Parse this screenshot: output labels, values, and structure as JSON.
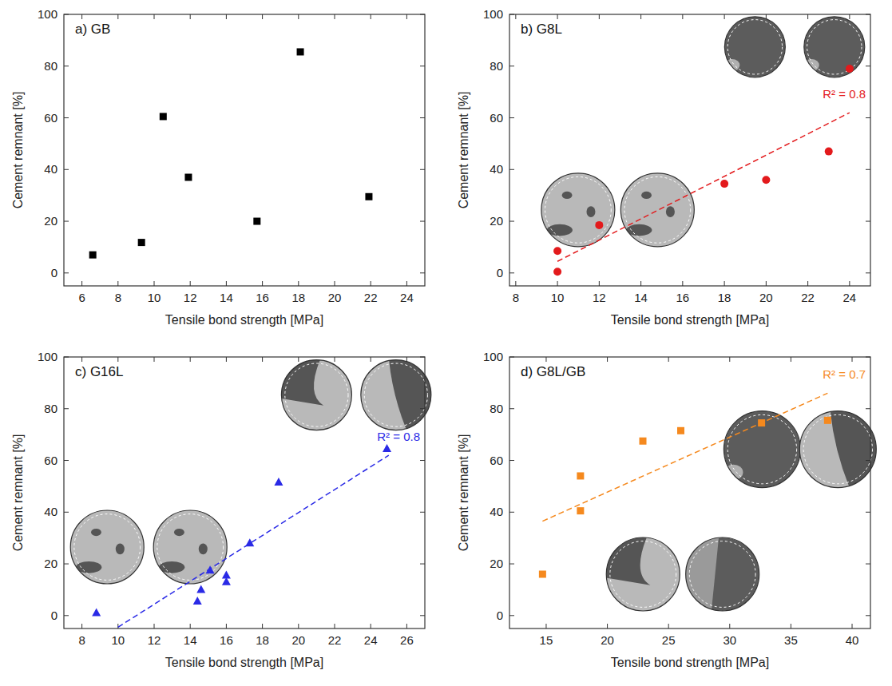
{
  "chart_data": [
    {
      "type": "scatter",
      "title": "a) GB",
      "x_label": "Tensile bond strength [MPa]",
      "y_label": "Cement remnant [%]",
      "xlim": [
        5,
        25
      ],
      "ylim": [
        -5,
        100
      ],
      "xticks": [
        6,
        8,
        10,
        12,
        14,
        16,
        18,
        20,
        22,
        24
      ],
      "yticks": [
        0,
        20,
        40,
        60,
        80,
        100
      ],
      "x": [
        6.6,
        9.3,
        10.5,
        11.9,
        15.7,
        18.1,
        21.9
      ],
      "values": [
        7,
        11.8,
        60.5,
        37,
        20,
        85.5,
        29.5
      ],
      "color": "#000000",
      "marker": "square"
    },
    {
      "type": "scatter",
      "title": "b) G8L",
      "x_label": "Tensile bond strength [MPa]",
      "y_label": "Cement remnant [%]",
      "xlim": [
        7.7,
        25
      ],
      "ylim": [
        -5,
        100
      ],
      "xticks": [
        8,
        10,
        12,
        14,
        16,
        18,
        20,
        22,
        24
      ],
      "yticks": [
        0,
        20,
        40,
        60,
        80,
        100
      ],
      "x": [
        10,
        10,
        12,
        18,
        20,
        23,
        24
      ],
      "values": [
        8.5,
        0.5,
        18.5,
        34.5,
        36,
        47,
        79
      ],
      "color": "#e31a1c",
      "marker": "circle",
      "fit": {
        "x": [
          10,
          24
        ],
        "values": [
          4.5,
          62
        ],
        "line_style": "dashed"
      },
      "fit_label": "R² = 0.8"
    },
    {
      "type": "scatter",
      "title": "c) G16L",
      "x_label": "Tensile bond strength [MPa]",
      "y_label": "Cement remnant [%]",
      "xlim": [
        7,
        27
      ],
      "ylim": [
        -5,
        100
      ],
      "xticks": [
        8,
        10,
        12,
        14,
        16,
        18,
        20,
        22,
        24,
        26
      ],
      "yticks": [
        0,
        20,
        40,
        60,
        80,
        100
      ],
      "x": [
        8.8,
        14.4,
        14.6,
        15.1,
        16,
        16,
        17.3,
        18.9,
        24.9
      ],
      "values": [
        1,
        5.5,
        10,
        17.5,
        13,
        15.5,
        28,
        51.5,
        64.5
      ],
      "color": "#2a2ae6",
      "marker": "triangle",
      "fit": {
        "x": [
          10,
          25
        ],
        "values": [
          -4.5,
          62
        ],
        "line_style": "dashed"
      },
      "fit_label": "R² = 0.8"
    },
    {
      "type": "scatter",
      "title": "d) G8L/GB",
      "x_label": "Tensile bond strength [MPa]",
      "y_label": "Cement remnant [%]",
      "xlim": [
        12,
        41.5
      ],
      "ylim": [
        -5,
        100
      ],
      "xticks": [
        15,
        20,
        25,
        30,
        35,
        40
      ],
      "yticks": [
        0,
        20,
        40,
        60,
        80,
        100
      ],
      "x": [
        14.7,
        17.8,
        17.8,
        22.9,
        26,
        32.6,
        38
      ],
      "values": [
        16,
        54,
        40.5,
        67.5,
        71.5,
        74.5,
        75.5
      ],
      "color": "#f5891e",
      "marker": "square",
      "fit": {
        "x": [
          14.7,
          38
        ],
        "values": [
          36.5,
          86
        ],
        "line_style": "dashed"
      },
      "fit_label": "R² = 0.7"
    }
  ]
}
